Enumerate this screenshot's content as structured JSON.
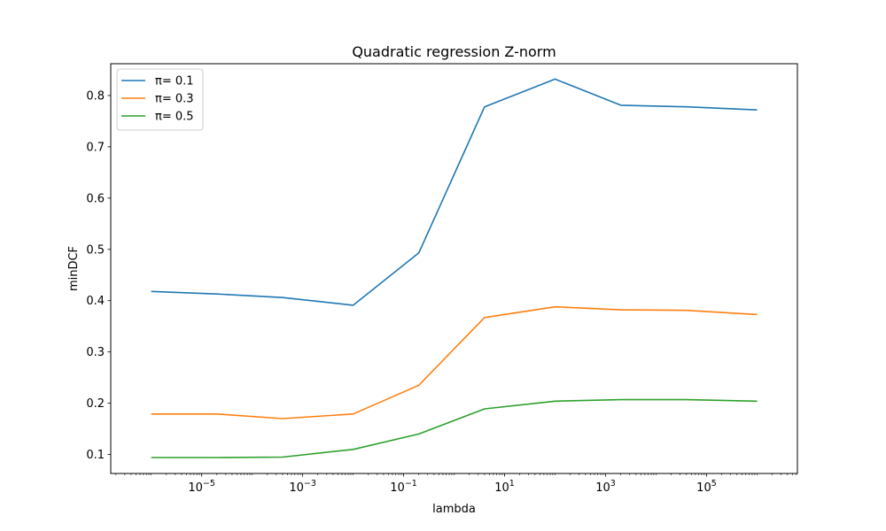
{
  "chart_data": {
    "type": "line",
    "title": "Quadratic regression Z-norm",
    "xlabel": "lambda",
    "ylabel": "minDCF",
    "xscale": "log",
    "xlim": [
      1.58e-07,
      6300000.0
    ],
    "ylim": [
      0.063,
      0.862
    ],
    "x": [
      1e-06,
      2e-05,
      0.0004,
      0.01,
      0.2,
      4,
      100,
      2000,
      40000,
      1000000
    ],
    "x_ticks": [
      {
        "value": 1e-05,
        "base": "10",
        "exp": "−5"
      },
      {
        "value": 0.001,
        "base": "10",
        "exp": "−3"
      },
      {
        "value": 0.1,
        "base": "10",
        "exp": "−1"
      },
      {
        "value": 10,
        "base": "10",
        "exp": "1"
      },
      {
        "value": 1000,
        "base": "10",
        "exp": "3"
      },
      {
        "value": 100000,
        "base": "10",
        "exp": "5"
      }
    ],
    "y_ticks": [
      0.1,
      0.2,
      0.3,
      0.4,
      0.5,
      0.6,
      0.7,
      0.8
    ],
    "y_tick_labels": [
      "0.1",
      "0.2",
      "0.3",
      "0.4",
      "0.5",
      "0.6",
      "0.7",
      "0.8"
    ],
    "grid": false,
    "legend_position": "top-left",
    "series": [
      {
        "name": "π= 0.1",
        "color": "#1f77b4",
        "values": [
          0.418,
          0.413,
          0.406,
          0.391,
          0.493,
          0.778,
          0.832,
          0.781,
          0.778,
          0.772
        ]
      },
      {
        "name": "π= 0.3",
        "color": "#ff7f0e",
        "values": [
          0.179,
          0.179,
          0.17,
          0.179,
          0.235,
          0.367,
          0.388,
          0.382,
          0.381,
          0.373
        ]
      },
      {
        "name": "π= 0.5",
        "color": "#2ca02c",
        "values": [
          0.094,
          0.094,
          0.095,
          0.11,
          0.14,
          0.189,
          0.204,
          0.207,
          0.207,
          0.204
        ]
      }
    ]
  }
}
